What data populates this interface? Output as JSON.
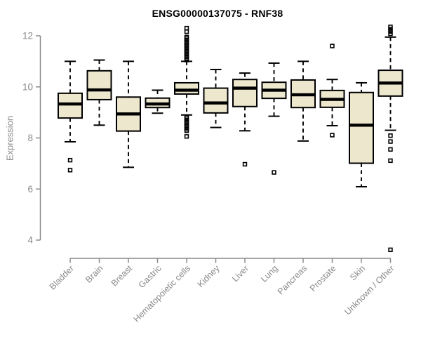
{
  "chart_data": {
    "type": "boxplot",
    "title": "ENSG00000137075 - RNF38",
    "xlabel": "",
    "ylabel": "Expression",
    "y_ticks": [
      4,
      6,
      8,
      10,
      12
    ],
    "ylim": [
      3.5,
      12.45
    ],
    "grid": false,
    "legend": "none",
    "categories": [
      "Bladder",
      "Brain",
      "Breast",
      "Gastric",
      "Hematopoietic cells",
      "Kidney",
      "Liver",
      "Lung",
      "Pancreas",
      "Prostate",
      "Skin",
      "Unknown / Other"
    ],
    "series": [
      {
        "name": "Bladder",
        "low": 7.85,
        "q1": 8.78,
        "median": 9.33,
        "q3": 9.75,
        "high": 11.0,
        "outliers": [
          7.13,
          6.74
        ]
      },
      {
        "name": "Brain",
        "low": 8.5,
        "q1": 9.5,
        "median": 9.88,
        "q3": 10.63,
        "high": 11.05,
        "outliers": []
      },
      {
        "name": "Breast",
        "low": 6.85,
        "q1": 8.27,
        "median": 8.94,
        "q3": 9.6,
        "high": 11.0,
        "outliers": []
      },
      {
        "name": "Gastric",
        "low": 8.97,
        "q1": 9.19,
        "median": 9.33,
        "q3": 9.56,
        "high": 9.87,
        "outliers": []
      },
      {
        "name": "Hematopoietic cells",
        "low": 8.9,
        "q1": 9.72,
        "median": 9.87,
        "q3": 10.16,
        "high": 11.0,
        "outliers": [
          12.3,
          12.16,
          11.95,
          11.89,
          11.83,
          11.77,
          11.71,
          11.65,
          11.59,
          11.53,
          11.47,
          11.41,
          11.35,
          11.29,
          11.23,
          11.17,
          11.11,
          11.05,
          8.82,
          8.76,
          8.7,
          8.64,
          8.58,
          8.52,
          8.46,
          8.4,
          8.34,
          8.28,
          8.06
        ]
      },
      {
        "name": "Kidney",
        "low": 8.41,
        "q1": 8.98,
        "median": 9.37,
        "q3": 9.95,
        "high": 10.68,
        "outliers": []
      },
      {
        "name": "Liver",
        "low": 8.28,
        "q1": 9.23,
        "median": 9.95,
        "q3": 10.29,
        "high": 10.54,
        "outliers": [
          6.97
        ]
      },
      {
        "name": "Lung",
        "low": 8.85,
        "q1": 9.55,
        "median": 9.87,
        "q3": 10.18,
        "high": 10.93,
        "outliers": [
          6.65
        ]
      },
      {
        "name": "Pancreas",
        "low": 7.88,
        "q1": 9.19,
        "median": 9.69,
        "q3": 10.27,
        "high": 11.0,
        "outliers": []
      },
      {
        "name": "Prostate",
        "low": 8.48,
        "q1": 9.2,
        "median": 9.51,
        "q3": 9.86,
        "high": 10.29,
        "outliers": [
          11.6,
          8.11
        ]
      },
      {
        "name": "Skin",
        "low": 6.09,
        "q1": 7.01,
        "median": 8.5,
        "q3": 9.78,
        "high": 10.16,
        "outliers": []
      },
      {
        "name": "Unknown / Other",
        "low": 8.3,
        "q1": 9.64,
        "median": 10.15,
        "q3": 10.65,
        "high": 11.95,
        "outliers": [
          12.35,
          12.26,
          12.17,
          12.08,
          8.09,
          7.86,
          7.55,
          7.11,
          3.62
        ]
      }
    ],
    "colors": {
      "box_fill": "#ede7ce",
      "box_border": "#000000",
      "median": "#000000",
      "whisker": "#000000",
      "outlier": "#000000",
      "axis": "#8a8a8a",
      "title": "#000000",
      "background": "#ffffff"
    }
  }
}
